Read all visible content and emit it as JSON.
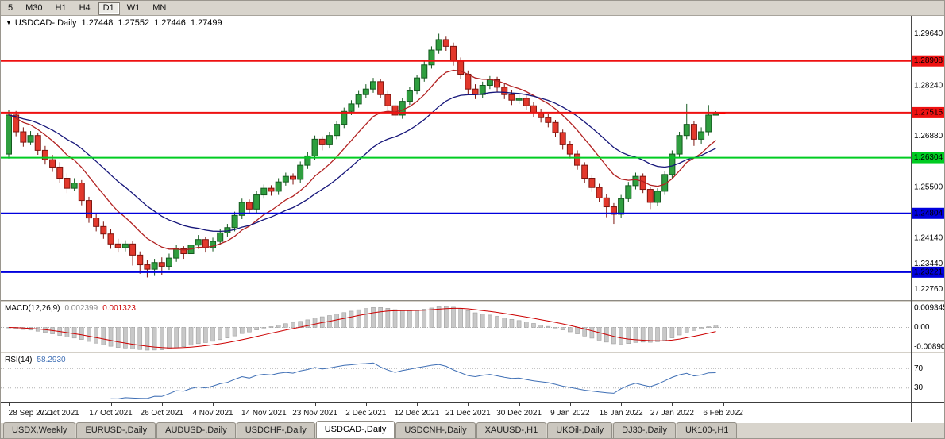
{
  "toolbar": {
    "timeframes": [
      "5",
      "M30",
      "H1",
      "H4",
      "D1",
      "W1",
      "MN"
    ],
    "active": "D1"
  },
  "chart": {
    "title": {
      "symbol": "USDCAD-,Daily",
      "open": "1.27448",
      "high": "1.27552",
      "low": "1.27446",
      "close": "1.27499"
    }
  },
  "chart_data": {
    "type": "candlestick",
    "symbol": "USDCAD",
    "timeframe": "Daily",
    "price_range": [
      1.2247,
      1.3012
    ],
    "price_axis_labels": [
      "1.29640",
      "1.28240",
      "1.26880",
      "1.25500",
      "1.24140",
      "1.23440",
      "1.22760"
    ],
    "hlines": [
      {
        "price": 1.28908,
        "label": "1.28908",
        "color": "#ee1111"
      },
      {
        "price": 1.27515,
        "label": "1.27515",
        "color": "#ee1111"
      },
      {
        "price": 1.26304,
        "label": "1.26304",
        "color": "#00cc22"
      },
      {
        "price": 1.24804,
        "label": "1.24804",
        "color": "#0000dd"
      },
      {
        "price": 1.23221,
        "label": "1.23221",
        "color": "#0000dd"
      }
    ],
    "moving_averages": [
      {
        "type": "ema",
        "period": 10,
        "color": "#b22222"
      },
      {
        "type": "ema",
        "period": 21,
        "color": "#16167a"
      }
    ],
    "colors": {
      "up_fill": "#2f9e3f",
      "up_stroke": "#14591f",
      "down_fill": "#e2382c",
      "down_stroke": "#7c140e",
      "macd_hist_fill": "#c8c8c8",
      "macd_hist_stroke": "#a0a0a0",
      "macd_signal": "#cc0000",
      "rsi_line": "#3f6fb5",
      "level_dotted": "#b0b0b0"
    },
    "x_labels": [
      "28 Sep 2021",
      "7 Oct 2021",
      "17 Oct 2021",
      "26 Oct 2021",
      "4 Nov 2021",
      "14 Nov 2021",
      "23 Nov 2021",
      "2 Dec 2021",
      "12 Dec 2021",
      "21 Dec 2021",
      "30 Dec 2021",
      "9 Jan 2022",
      "18 Jan 2022",
      "27 Jan 2022",
      "6 Feb 2022"
    ],
    "candles": [
      [
        1.264,
        1.2758,
        1.2628,
        1.2745
      ],
      [
        1.2745,
        1.2756,
        1.2688,
        1.27
      ],
      [
        1.27,
        1.2712,
        1.266,
        1.2672
      ],
      [
        1.2672,
        1.2702,
        1.2664,
        1.269
      ],
      [
        1.269,
        1.2698,
        1.2638,
        1.265
      ],
      [
        1.265,
        1.2662,
        1.2612,
        1.2625
      ],
      [
        1.2625,
        1.2638,
        1.2592,
        1.2605
      ],
      [
        1.2605,
        1.2618,
        1.2562,
        1.2575
      ],
      [
        1.2575,
        1.2588,
        1.2535,
        1.2548
      ],
      [
        1.2548,
        1.2575,
        1.254,
        1.2562
      ],
      [
        1.2562,
        1.257,
        1.2502,
        1.2515
      ],
      [
        1.2515,
        1.2525,
        1.2455,
        1.2468
      ],
      [
        1.2468,
        1.248,
        1.2432,
        1.2445
      ],
      [
        1.2445,
        1.2458,
        1.2412,
        1.2425
      ],
      [
        1.2425,
        1.2438,
        1.2385,
        1.2398
      ],
      [
        1.2398,
        1.2412,
        1.2375,
        1.2388
      ],
      [
        1.2388,
        1.2408,
        1.2378,
        1.2398
      ],
      [
        1.2398,
        1.2405,
        1.234,
        1.2368
      ],
      [
        1.2368,
        1.2378,
        1.2318,
        1.2342
      ],
      [
        1.2342,
        1.2355,
        1.2308,
        1.233
      ],
      [
        1.233,
        1.2358,
        1.2312,
        1.2348
      ],
      [
        1.2348,
        1.2362,
        1.2315,
        1.2338
      ],
      [
        1.2338,
        1.2372,
        1.2328,
        1.236
      ],
      [
        1.236,
        1.2395,
        1.235,
        1.2385
      ],
      [
        1.2385,
        1.2392,
        1.2358,
        1.2372
      ],
      [
        1.2372,
        1.2405,
        1.2362,
        1.2395
      ],
      [
        1.2395,
        1.2422,
        1.2385,
        1.241
      ],
      [
        1.241,
        1.2418,
        1.2375,
        1.2388
      ],
      [
        1.2388,
        1.2415,
        1.2378,
        1.2405
      ],
      [
        1.2405,
        1.2438,
        1.2395,
        1.2428
      ],
      [
        1.2428,
        1.2452,
        1.2418,
        1.2442
      ],
      [
        1.2442,
        1.2485,
        1.2432,
        1.2475
      ],
      [
        1.2475,
        1.252,
        1.2465,
        1.251
      ],
      [
        1.251,
        1.2518,
        1.248,
        1.2492
      ],
      [
        1.2492,
        1.254,
        1.2482,
        1.253
      ],
      [
        1.253,
        1.2558,
        1.252,
        1.2548
      ],
      [
        1.2548,
        1.2556,
        1.2528,
        1.254
      ],
      [
        1.254,
        1.2575,
        1.253,
        1.2565
      ],
      [
        1.2565,
        1.259,
        1.2555,
        1.258
      ],
      [
        1.258,
        1.2588,
        1.2558,
        1.2572
      ],
      [
        1.2572,
        1.262,
        1.2562,
        1.261
      ],
      [
        1.261,
        1.2645,
        1.26,
        1.2635
      ],
      [
        1.2635,
        1.269,
        1.2625,
        1.268
      ],
      [
        1.268,
        1.2688,
        1.265,
        1.2665
      ],
      [
        1.2665,
        1.27,
        1.2655,
        1.269
      ],
      [
        1.269,
        1.273,
        1.268,
        1.272
      ],
      [
        1.272,
        1.2765,
        1.271,
        1.2755
      ],
      [
        1.2755,
        1.2785,
        1.2745,
        1.2775
      ],
      [
        1.2775,
        1.281,
        1.2765,
        1.28
      ],
      [
        1.28,
        1.2828,
        1.279,
        1.2815
      ],
      [
        1.2815,
        1.2845,
        1.2805,
        1.2835
      ],
      [
        1.2835,
        1.2842,
        1.279,
        1.28
      ],
      [
        1.28,
        1.281,
        1.2758,
        1.277
      ],
      [
        1.277,
        1.2778,
        1.2732,
        1.2745
      ],
      [
        1.2745,
        1.279,
        1.2735,
        1.2782
      ],
      [
        1.2782,
        1.282,
        1.2772,
        1.281
      ],
      [
        1.281,
        1.2852,
        1.28,
        1.2845
      ],
      [
        1.2845,
        1.289,
        1.2835,
        1.288
      ],
      [
        1.288,
        1.293,
        1.287,
        1.292
      ],
      [
        1.292,
        1.2964,
        1.291,
        1.2948
      ],
      [
        1.2948,
        1.2958,
        1.2918,
        1.293
      ],
      [
        1.293,
        1.294,
        1.2878,
        1.289
      ],
      [
        1.289,
        1.29,
        1.2842,
        1.2855
      ],
      [
        1.2855,
        1.2865,
        1.2802,
        1.2815
      ],
      [
        1.2815,
        1.2828,
        1.2788,
        1.28
      ],
      [
        1.28,
        1.2835,
        1.279,
        1.2825
      ],
      [
        1.2825,
        1.285,
        1.2815,
        1.284
      ],
      [
        1.284,
        1.2848,
        1.2808,
        1.282
      ],
      [
        1.282,
        1.283,
        1.2788,
        1.28
      ],
      [
        1.28,
        1.2812,
        1.2772,
        1.2785
      ],
      [
        1.2785,
        1.28,
        1.2775,
        1.279
      ],
      [
        1.279,
        1.2798,
        1.2758,
        1.277
      ],
      [
        1.277,
        1.278,
        1.274,
        1.2752
      ],
      [
        1.2752,
        1.2762,
        1.2725,
        1.2738
      ],
      [
        1.2738,
        1.2748,
        1.2712,
        1.2725
      ],
      [
        1.2725,
        1.2732,
        1.2685,
        1.2698
      ],
      [
        1.2698,
        1.2706,
        1.2652,
        1.2665
      ],
      [
        1.2665,
        1.2675,
        1.2628,
        1.264
      ],
      [
        1.264,
        1.265,
        1.2598,
        1.261
      ],
      [
        1.261,
        1.2618,
        1.2562,
        1.2575
      ],
      [
        1.2575,
        1.2585,
        1.2538,
        1.255
      ],
      [
        1.255,
        1.256,
        1.251,
        1.2522
      ],
      [
        1.2522,
        1.2532,
        1.247,
        1.2498
      ],
      [
        1.2498,
        1.2508,
        1.2452,
        1.2478
      ],
      [
        1.2478,
        1.253,
        1.2468,
        1.252
      ],
      [
        1.252,
        1.2565,
        1.251,
        1.2555
      ],
      [
        1.2555,
        1.259,
        1.2545,
        1.258
      ],
      [
        1.258,
        1.2588,
        1.2535,
        1.2545
      ],
      [
        1.2545,
        1.2552,
        1.2492,
        1.251
      ],
      [
        1.251,
        1.2548,
        1.25,
        1.254
      ],
      [
        1.254,
        1.2595,
        1.253,
        1.2585
      ],
      [
        1.2585,
        1.265,
        1.2575,
        1.264
      ],
      [
        1.264,
        1.27,
        1.263,
        1.269
      ],
      [
        1.269,
        1.2775,
        1.268,
        1.272
      ],
      [
        1.272,
        1.2728,
        1.2662,
        1.268
      ],
      [
        1.268,
        1.2712,
        1.2668,
        1.27
      ],
      [
        1.27,
        1.2772,
        1.269,
        1.2745
      ],
      [
        1.27448,
        1.27552,
        1.27446,
        1.27499
      ]
    ],
    "macd": {
      "label": "MACD(12,26,9)",
      "value": "0.002399",
      "signal": "0.001323",
      "params": [
        12,
        26,
        9
      ],
      "axis_labels": [
        "0.009345",
        "0.00",
        "-0.00890"
      ]
    },
    "rsi": {
      "label": "RSI(14)",
      "value": "58.2930",
      "period": 14,
      "levels": [
        70,
        30
      ]
    }
  },
  "tabs": {
    "items": [
      "USDX,Weekly",
      "EURUSD-,Daily",
      "AUDUSD-,Daily",
      "USDCHF-,Daily",
      "USDCAD-,Daily",
      "USDCNH-,Daily",
      "XAUUSD-,H1",
      "UKOil-,Daily",
      "DJ30-,Daily",
      "UK100-,H1"
    ],
    "active": "USDCAD-,Daily"
  }
}
